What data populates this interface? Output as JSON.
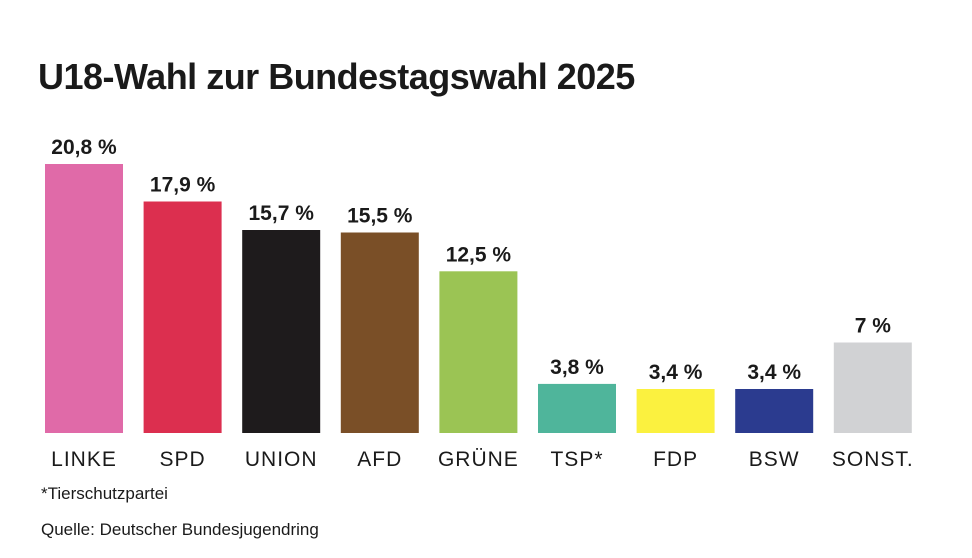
{
  "title": "U18-Wahl zur Bundestagswahl 2025",
  "footnote": "*Tierschutzpartei",
  "source": "Quelle: Deutscher Bundesjugendring",
  "chart_data": {
    "type": "bar",
    "title": "U18-Wahl zur Bundestagswahl 2025",
    "xlabel": "",
    "ylabel": "",
    "ylim": [
      0,
      20.8
    ],
    "grid": false,
    "legend": "none",
    "categories": [
      "LINKE",
      "SPD",
      "UNION",
      "AFD",
      "GRÜNE",
      "TSP*",
      "FDP",
      "BSW",
      "SONST."
    ],
    "values": [
      20.8,
      17.9,
      15.7,
      15.5,
      12.5,
      3.8,
      3.4,
      3.4,
      7
    ],
    "value_labels": [
      "20,8 %",
      "17,9 %",
      "15,7 %",
      "15,5 %",
      "12,5 %",
      "3,8 %",
      "3,4 %",
      "3,4 %",
      "7 %"
    ],
    "colors": [
      "#e06aa8",
      "#dc2f4f",
      "#1e1b1c",
      "#7a4f27",
      "#9bc454",
      "#4fb59b",
      "#fbf13f",
      "#2b3b8f",
      "#d1d2d4"
    ]
  }
}
